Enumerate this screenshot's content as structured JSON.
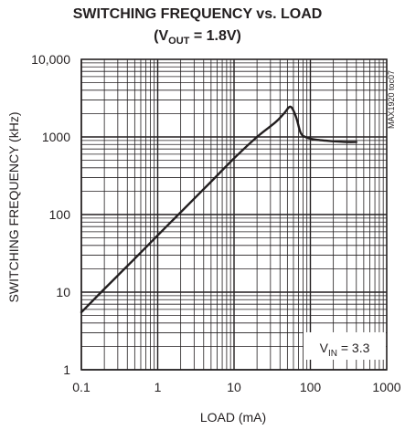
{
  "chart_data": {
    "type": "line",
    "title": "SWITCHING FREQUENCY vs. LOAD",
    "subtitle": {
      "prefix": "(V",
      "subscript": "OUT",
      "suffix": " = 1.8V)"
    },
    "xlabel": "LOAD (mA)",
    "ylabel": "SWITCHING FREQUENCY (kHz)",
    "x_scale": "log",
    "y_scale": "log",
    "xlim": [
      0.1,
      1000
    ],
    "ylim": [
      1,
      10000
    ],
    "x_ticks": [
      {
        "value": 0.1,
        "label": "0.1"
      },
      {
        "value": 1,
        "label": "1"
      },
      {
        "value": 10,
        "label": "10"
      },
      {
        "value": 100,
        "label": "100"
      },
      {
        "value": 1000,
        "label": "1000"
      }
    ],
    "y_ticks": [
      {
        "value": 1,
        "label": "1"
      },
      {
        "value": 10,
        "label": "10"
      },
      {
        "value": 100,
        "label": "100"
      },
      {
        "value": 1000,
        "label": "1000"
      },
      {
        "value": 10000,
        "label": "10,000"
      }
    ],
    "grid": true,
    "annotation": {
      "prefix": "V",
      "subscript": "IN",
      "suffix": " = 3.3"
    },
    "figure_code": "MAX1920 toc07",
    "series": [
      {
        "points": [
          [
            0.1,
            5.5
          ],
          [
            0.2,
            11
          ],
          [
            0.5,
            27
          ],
          [
            1,
            54
          ],
          [
            2,
            107
          ],
          [
            5,
            265
          ],
          [
            10,
            530
          ],
          [
            20,
            1000
          ],
          [
            35,
            1550
          ],
          [
            45,
            2000
          ],
          [
            55,
            2450
          ],
          [
            65,
            1800
          ],
          [
            75,
            1120
          ],
          [
            90,
            980
          ],
          [
            120,
            920
          ],
          [
            200,
            880
          ],
          [
            300,
            860
          ],
          [
            400,
            860
          ]
        ]
      }
    ]
  }
}
